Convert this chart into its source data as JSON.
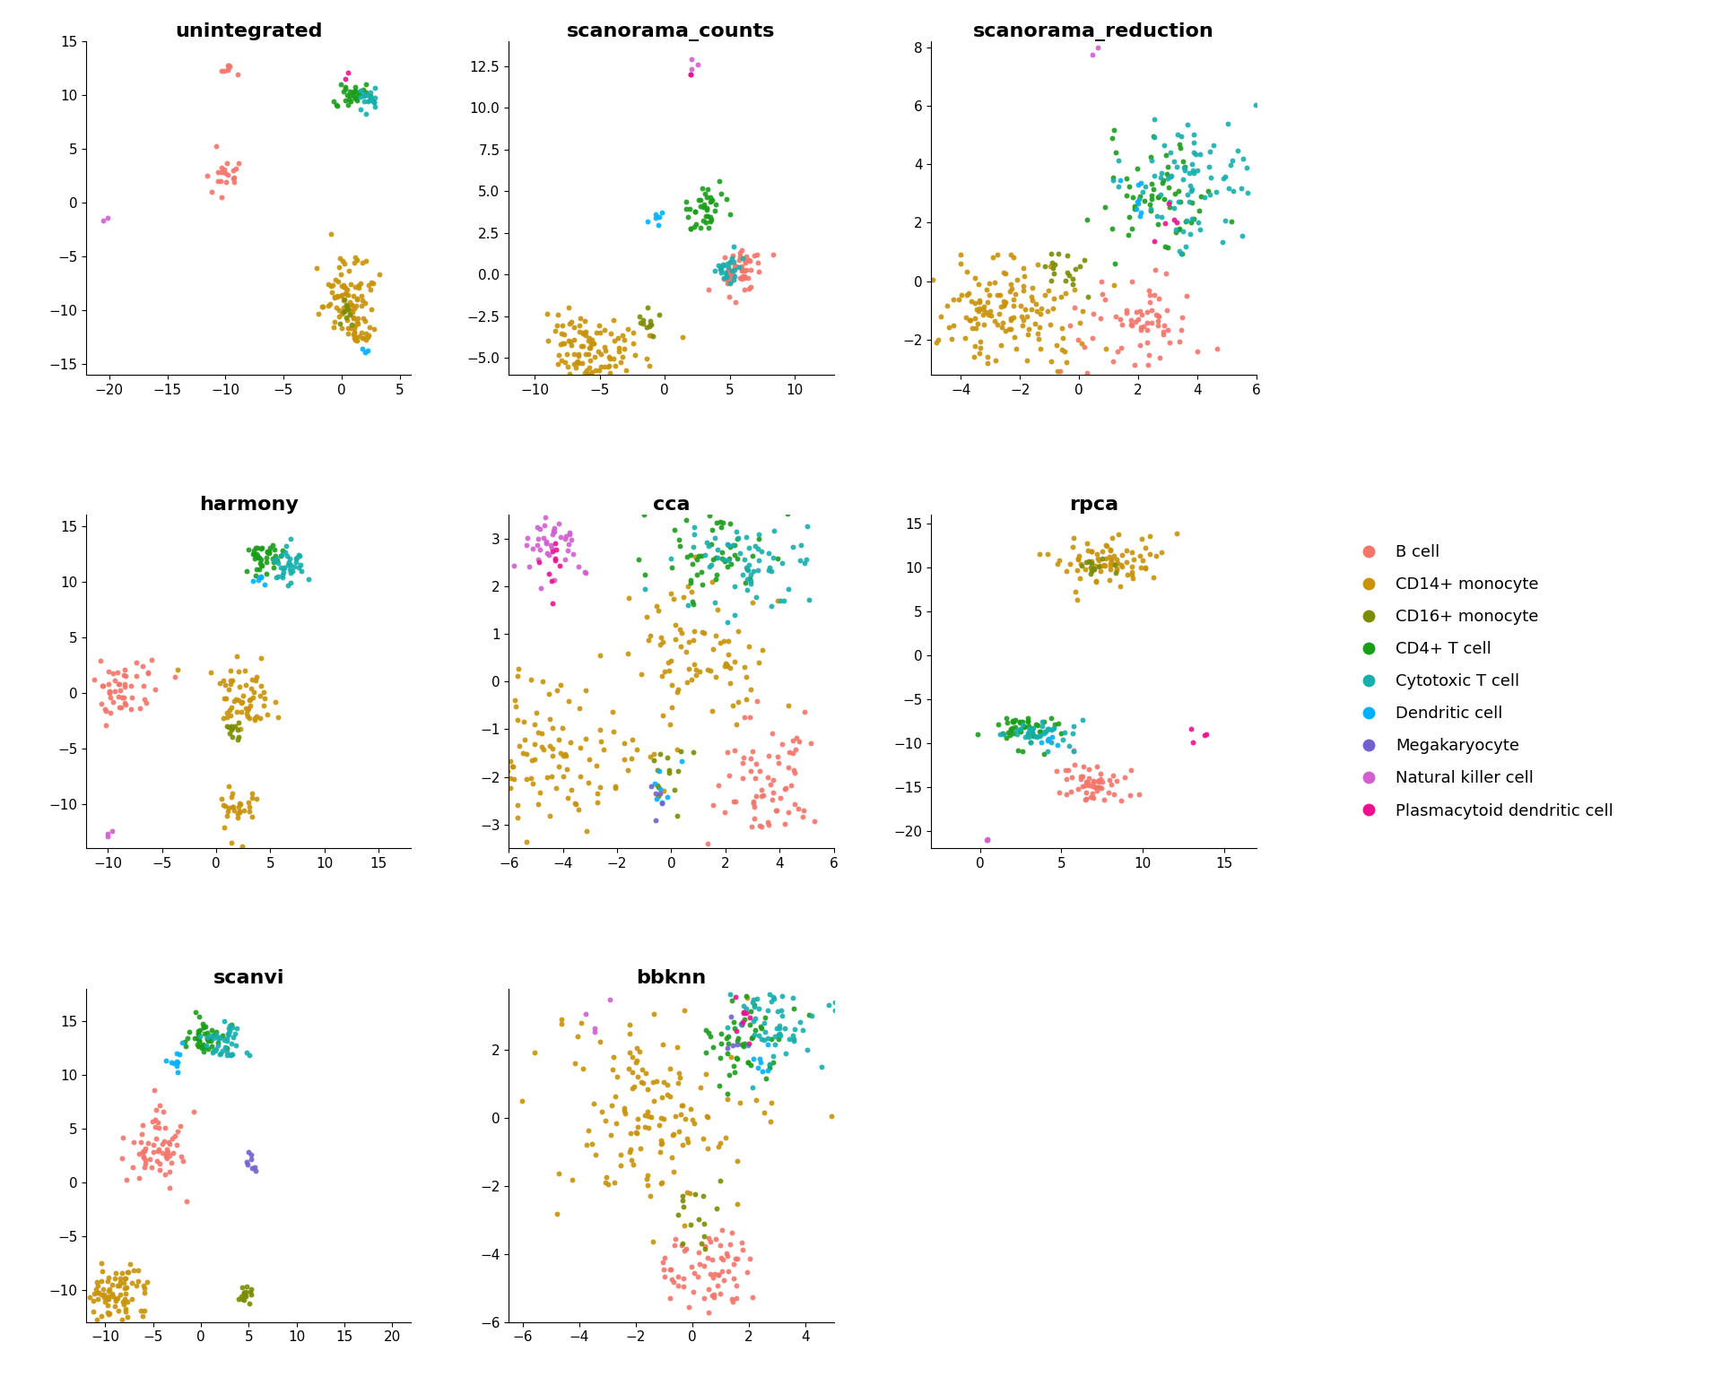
{
  "cell_types": [
    "B cell",
    "CD14+ monocyte",
    "CD16+ monocyte",
    "CD4+ T cell",
    "Cytotoxic T cell",
    "Dendritic cell",
    "Megakaryocyte",
    "Natural killer cell",
    "Plasmacytoid dendritic cell"
  ],
  "colors": {
    "B cell": "#F4756A",
    "CD14+ monocyte": "#C8920A",
    "CD16+ monocyte": "#7A8C00",
    "CD4+ T cell": "#1A9E1A",
    "Cytotoxic T cell": "#17AEAE",
    "Dendritic cell": "#00B0FF",
    "Megakaryocyte": "#7060D0",
    "Natural killer cell": "#D060D0",
    "Plasmacytoid dendritic cell": "#EE1090"
  },
  "background_color": "#ffffff",
  "title_fontsize": 16,
  "tick_fontsize": 11,
  "legend_fontsize": 13,
  "marker_size": 18,
  "alpha": 0.9,
  "seed": 42
}
